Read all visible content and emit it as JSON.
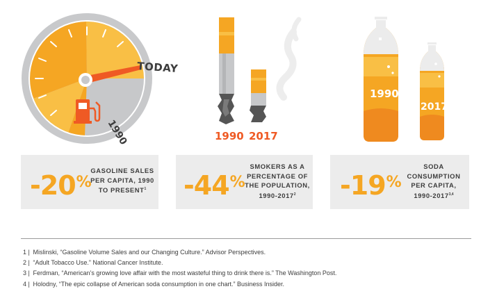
{
  "gauge": {
    "today_label": "TODAY",
    "year_label": "1990",
    "icon": "gas-pump-icon"
  },
  "cigarettes": {
    "year_left": "1990",
    "year_right": "2017"
  },
  "bottles": {
    "year_left": "1990",
    "year_right": "2017"
  },
  "stats": [
    {
      "value": "-20",
      "pct": "%",
      "lines": [
        "Gasoline sales",
        "per capita, 1990",
        "to present"
      ],
      "ref": "1"
    },
    {
      "value": "-44",
      "pct": "%",
      "lines": [
        "Smokers as a",
        "percentage of",
        "the population,",
        "1990-2017"
      ],
      "ref": "2"
    },
    {
      "value": "-19",
      "pct": "%",
      "lines": [
        "Soda",
        "consumption",
        "per capita,",
        "1990-2017"
      ],
      "ref": "3,4"
    }
  ],
  "footnotes": [
    {
      "num": "1 |",
      "text": "Mislinski, “Gasoline Volume Sales and our Changing Culture.” Advisor Perspectives."
    },
    {
      "num": "2 |",
      "text": "“Adult Tobacco Use.” National Cancer Institute."
    },
    {
      "num": "3 |",
      "text": "Ferdman, “American’s growing love affair with the most wasteful thing to drink there is.” The Washington Post."
    },
    {
      "num": "4 |",
      "text": "Holodny,  “The epic collapse of American soda consumption in one chart.” Business Insider."
    }
  ],
  "colors": {
    "orange": "#f5a623",
    "light_orange": "#f9bf45",
    "red_orange": "#ef5a24",
    "gray": "#c7c8ca",
    "dark": "#3d3d3d",
    "card": "#ececec"
  }
}
